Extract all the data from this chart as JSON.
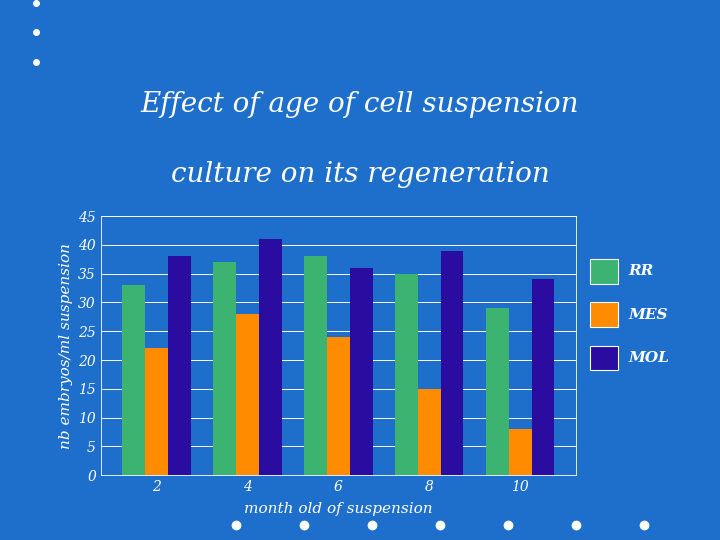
{
  "title_line1": "Effect of age of cell suspension",
  "title_line2": "culture on its regeneration",
  "categories": [
    2,
    4,
    6,
    8,
    10
  ],
  "RR": [
    33,
    37,
    38,
    35,
    29
  ],
  "MES": [
    22,
    28,
    24,
    15,
    8
  ],
  "MOL": [
    38,
    41,
    36,
    39,
    34
  ],
  "bar_colors": {
    "RR": "#3cb371",
    "MES": "#ff8c00",
    "MOL": "#2a0ca0"
  },
  "ylabel": "nb embryos/ml suspension",
  "xlabel": "month old of suspension",
  "ylim": [
    0,
    45
  ],
  "yticks": [
    0,
    5,
    10,
    15,
    20,
    25,
    30,
    35,
    40,
    45
  ],
  "background_color": "#1e6fcc",
  "plot_bg_color": "#1e6fcc",
  "title_bg_color": "#4b0082",
  "grid_color": "#ffffff",
  "text_color": "#ffffff",
  "legend_bg_color": "#1e6fcc",
  "bar_width": 0.25,
  "title_fontsize": 20,
  "axis_label_fontsize": 11,
  "tick_fontsize": 10,
  "legend_fontsize": 11
}
